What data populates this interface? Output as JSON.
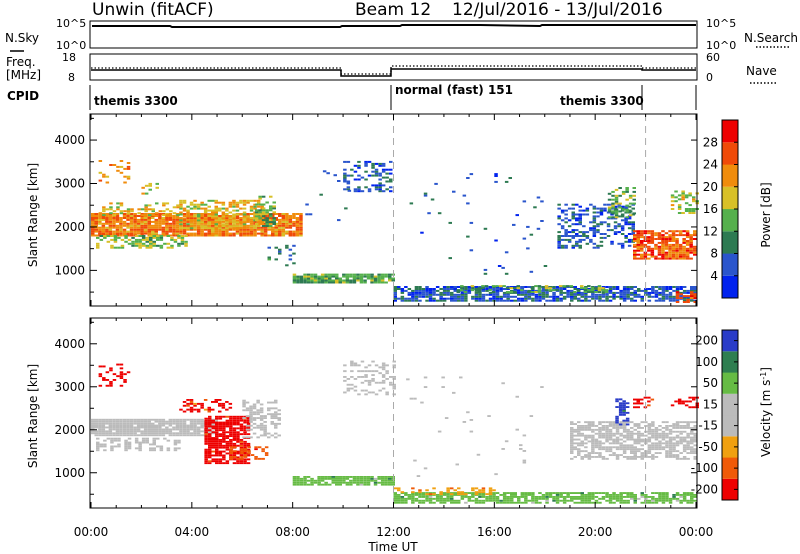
{
  "header": {
    "radar": "Unwin (fitACF)",
    "beam": "Beam 12",
    "dates": "12/Jul/2016 - 13/Jul/2016"
  },
  "strip_labels": {
    "nsky": "N.Sky",
    "nsky_ticks": [
      "10^5",
      "10^0"
    ],
    "nsearch": "N.Search",
    "nsearch_ticks": [
      "10^5",
      "10^0"
    ],
    "freq_line1": "Freq.",
    "freq_line2": "[MHz]",
    "freq_ticks": [
      "18",
      "8"
    ],
    "nave": "Nave",
    "nave_ticks": [
      "60",
      "0"
    ],
    "cpid": "CPID"
  },
  "cpid_segments": [
    {
      "label": "themis 3300",
      "start_h": 0,
      "end_h": 12
    },
    {
      "label": "normal (fast) 151",
      "start_h": 12,
      "end_h": 22
    },
    {
      "label": "themis 3300",
      "start_h": 22,
      "end_h": 24
    }
  ],
  "colors": {
    "power_scale": [
      "#0022ee",
      "#2a55cc",
      "#2d7a52",
      "#55b04c",
      "#d8c028",
      "#f08c0c",
      "#f04a08",
      "#ee0000"
    ],
    "velocity_scale": [
      "#ee0000",
      "#f05a08",
      "#f0a010",
      "#bbbbbb",
      "#bbbbbb",
      "#66bb44",
      "#2e7e50",
      "#2a3cc8"
    ],
    "ground_scatter": "#bbbbbb"
  },
  "chart_data": [
    {
      "type": "heatmap",
      "panel": "power",
      "xlabel": "Time UT",
      "ylabel": "Slant Range [km]",
      "xlim_hours": [
        0,
        24
      ],
      "ylim_km": [
        180,
        4600
      ],
      "x_ticks": [
        "00:00",
        "04:00",
        "08:00",
        "12:00",
        "16:00",
        "20:00",
        "00:00"
      ],
      "y_ticks": [
        "1000",
        "2000",
        "3000",
        "4000"
      ],
      "colorbar_label": "Power [dB]",
      "colorbar_ticks": [
        "4",
        "8",
        "12",
        "16",
        "20",
        "24",
        "28"
      ],
      "colorbar_range": [
        0,
        30
      ],
      "vertical_markers_h": [
        12,
        22
      ],
      "regions": [
        {
          "t": [
            0.0,
            8.3
          ],
          "r": [
            1780,
            2280
          ],
          "v": 22,
          "d": 0.9
        },
        {
          "t": [
            0.2,
            3.8
          ],
          "r": [
            1500,
            1800
          ],
          "v": 14,
          "d": 0.55
        },
        {
          "t": [
            3.5,
            6.8
          ],
          "r": [
            1950,
            2600
          ],
          "v": 18,
          "d": 0.55
        },
        {
          "t": [
            0.3,
            3.5
          ],
          "r": [
            2250,
            2550
          ],
          "v": 17,
          "d": 0.35
        },
        {
          "t": [
            6.5,
            7.3
          ],
          "r": [
            2000,
            2700
          ],
          "v": 12,
          "d": 0.5
        },
        {
          "t": [
            0.3,
            1.5
          ],
          "r": [
            3000,
            3500
          ],
          "v": 20,
          "d": 0.2
        },
        {
          "t": [
            2.0,
            2.6
          ],
          "r": [
            2700,
            3000
          ],
          "v": 16,
          "d": 0.25
        },
        {
          "t": [
            7.0,
            8.0
          ],
          "r": [
            1050,
            1550
          ],
          "v": 8,
          "d": 0.2
        },
        {
          "t": [
            10.0,
            11.9
          ],
          "r": [
            2800,
            3500
          ],
          "v": 6,
          "d": 0.35
        },
        {
          "t": [
            8.0,
            12.0
          ],
          "r": [
            700,
            900
          ],
          "v": 12,
          "d": 0.9
        },
        {
          "t": [
            8.5,
            10.5
          ],
          "r": [
            2000,
            3300
          ],
          "v": 6,
          "d": 0.04
        },
        {
          "t": [
            12.0,
            24.0
          ],
          "r": [
            280,
            600
          ],
          "v": 6,
          "d": 0.75
        },
        {
          "t": [
            14.5,
            20.5
          ],
          "r": [
            480,
            620
          ],
          "v": 13,
          "d": 0.45
        },
        {
          "t": [
            18.5,
            21.5
          ],
          "r": [
            1500,
            2500
          ],
          "v": 6,
          "d": 0.4
        },
        {
          "t": [
            20.5,
            21.5
          ],
          "r": [
            2200,
            2900
          ],
          "v": 12,
          "d": 0.4
        },
        {
          "t": [
            21.5,
            24.0
          ],
          "r": [
            1250,
            1900
          ],
          "v": 24,
          "d": 0.75
        },
        {
          "t": [
            23.0,
            24.0
          ],
          "r": [
            2300,
            2800
          ],
          "v": 16,
          "d": 0.4
        },
        {
          "t": [
            23.2,
            24.0
          ],
          "r": [
            250,
            500
          ],
          "v": 26,
          "d": 0.5
        },
        {
          "t": [
            12.5,
            18.0
          ],
          "r": [
            900,
            3200
          ],
          "v": 6,
          "d": 0.02
        }
      ]
    },
    {
      "type": "heatmap",
      "panel": "velocity",
      "xlabel": "Time UT",
      "ylabel": "Slant Range [km]",
      "xlim_hours": [
        0,
        24
      ],
      "ylim_km": [
        180,
        4600
      ],
      "x_ticks": [
        "00:00",
        "04:00",
        "08:00",
        "12:00",
        "16:00",
        "20:00",
        "00:00"
      ],
      "y_ticks": [
        "1000",
        "2000",
        "3000",
        "4000"
      ],
      "colorbar_label": "Velocity [m s^-1]",
      "colorbar_ticks": [
        "-200",
        "-100",
        "-50",
        "-15",
        "15",
        "50",
        "100",
        "200"
      ],
      "vertical_markers_h": [
        12,
        22
      ],
      "regions": [
        {
          "t": [
            0.0,
            5.0
          ],
          "r": [
            1850,
            2250
          ],
          "v": "gs",
          "d": 0.9
        },
        {
          "t": [
            0.2,
            3.5
          ],
          "r": [
            1500,
            1800
          ],
          "v": "gs",
          "d": 0.45
        },
        {
          "t": [
            4.5,
            6.2
          ],
          "r": [
            1200,
            2300
          ],
          "v": -200,
          "d": 0.75
        },
        {
          "t": [
            3.5,
            5.5
          ],
          "r": [
            2400,
            2700
          ],
          "v": -150,
          "d": 0.45
        },
        {
          "t": [
            0.3,
            1.5
          ],
          "r": [
            3000,
            3500
          ],
          "v": -200,
          "d": 0.2
        },
        {
          "t": [
            5.5,
            7.0
          ],
          "r": [
            1300,
            1600
          ],
          "v": -120,
          "d": 0.5
        },
        {
          "t": [
            6.0,
            7.5
          ],
          "r": [
            1800,
            2700
          ],
          "v": "gs",
          "d": 0.4
        },
        {
          "t": [
            8.0,
            12.0
          ],
          "r": [
            700,
            900
          ],
          "v": 60,
          "d": 0.85
        },
        {
          "t": [
            10.0,
            12.0
          ],
          "r": [
            2800,
            3600
          ],
          "v": "gs",
          "d": 0.3
        },
        {
          "t": [
            12.0,
            24.0
          ],
          "r": [
            280,
            520
          ],
          "v": 60,
          "d": 0.75
        },
        {
          "t": [
            12.0,
            16.0
          ],
          "r": [
            480,
            620
          ],
          "v": -70,
          "d": 0.35
        },
        {
          "t": [
            19.0,
            24.0
          ],
          "r": [
            1300,
            2200
          ],
          "v": "gs",
          "d": 0.7
        },
        {
          "t": [
            20.8,
            21.3
          ],
          "r": [
            2100,
            2700
          ],
          "v": 200,
          "d": 0.5
        },
        {
          "t": [
            21.5,
            22.3
          ],
          "r": [
            2500,
            2750
          ],
          "v": -200,
          "d": 0.4
        },
        {
          "t": [
            23.0,
            24.0
          ],
          "r": [
            2500,
            2750
          ],
          "v": -200,
          "d": 0.4
        },
        {
          "t": [
            12.5,
            18.0
          ],
          "r": [
            900,
            3200
          ],
          "v": "gs",
          "d": 0.02
        }
      ]
    }
  ]
}
